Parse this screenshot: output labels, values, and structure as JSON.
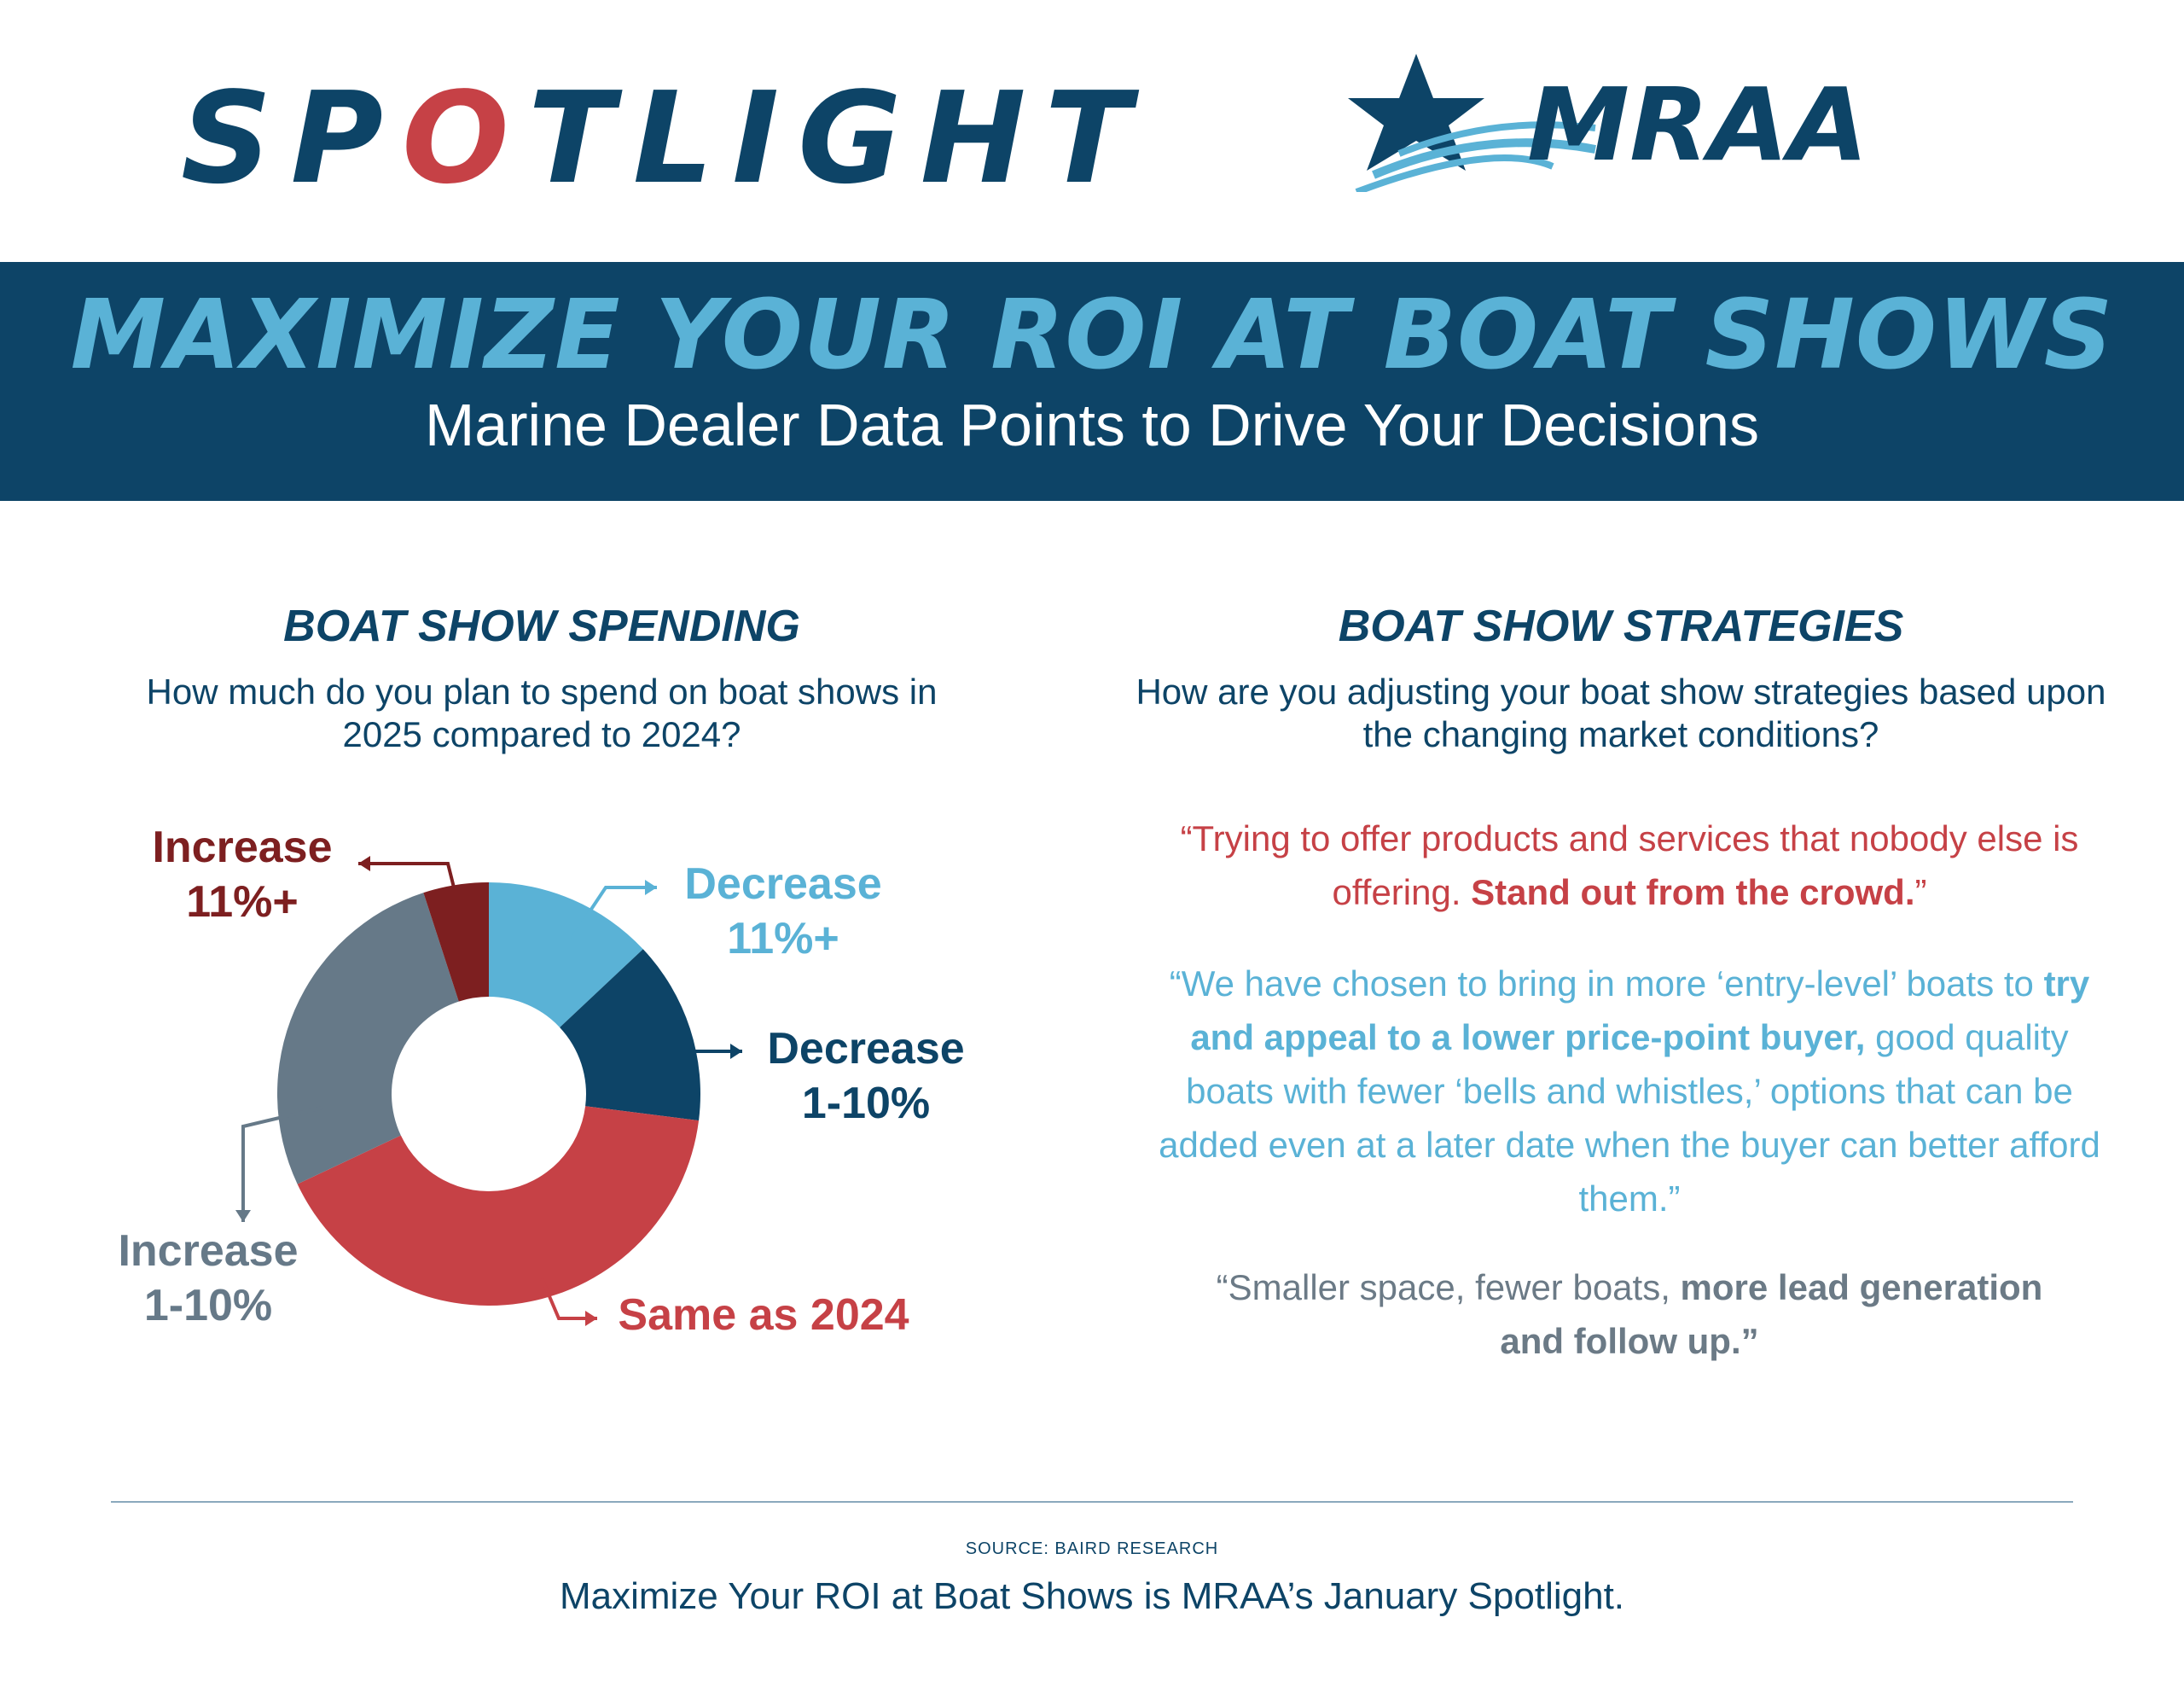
{
  "header": {
    "logo_text_before": "SP",
    "logo_text_o": "O",
    "logo_text_after": "TLIGHT",
    "brand_logo_text": "MRAA"
  },
  "banner": {
    "title": "MAXIMIZE YOUR ROI AT BOAT SHOWS",
    "subtitle": "Marine Dealer Data Points to Drive Your Decisions"
  },
  "spending": {
    "title": "BOAT SHOW SPENDING",
    "question": "How much do you plan to spend on boat shows in 2025 compared to 2024?"
  },
  "strategies": {
    "title": "BOAT SHOW STRATEGIES",
    "question": "How are you adjusting your boat show strategies based upon the changing market conditions?",
    "quote1": {
      "part1": "“Trying to offer products and services that nobody else is offering. ",
      "bold": "Stand out from the crowd.",
      "part2": "”"
    },
    "quote2": {
      "part1": "“We have chosen to bring in more ‘entry-level’ boats to ",
      "bold": "try and appeal to a lower price-point buyer,",
      "part2": " good quality boats with fewer ‘bells and whistles,’ options that can be added even at a later date when the buyer can better afford them.”"
    },
    "quote3": {
      "part1": "“Smaller space, fewer boats, ",
      "bold": "more lead generation and follow up.”"
    }
  },
  "chart_data": {
    "type": "pie",
    "donut": true,
    "start_angle_deg": 0,
    "direction": "clockwise",
    "slices": [
      {
        "label_line1": "Decrease",
        "label_line2": "11%+",
        "value": 13,
        "color": "#5ab2d6"
      },
      {
        "label_line1": "Decrease",
        "label_line2": "1-10%",
        "value": 14,
        "color": "#0d4467"
      },
      {
        "label_line1": "Same as 2024",
        "label_line2": "",
        "value": 41,
        "color": "#c64146"
      },
      {
        "label_line1": "Increase",
        "label_line2": "1-10%",
        "value": 27,
        "color": "#667988"
      },
      {
        "label_line1": "Increase",
        "label_line2": "11%+",
        "value": 5,
        "color": "#7d1f20"
      }
    ]
  },
  "footer": {
    "source": "SOURCE: BAIRD RESEARCH",
    "text": "Maximize Your ROI at Boat Shows is MRAA’s January Spotlight."
  }
}
